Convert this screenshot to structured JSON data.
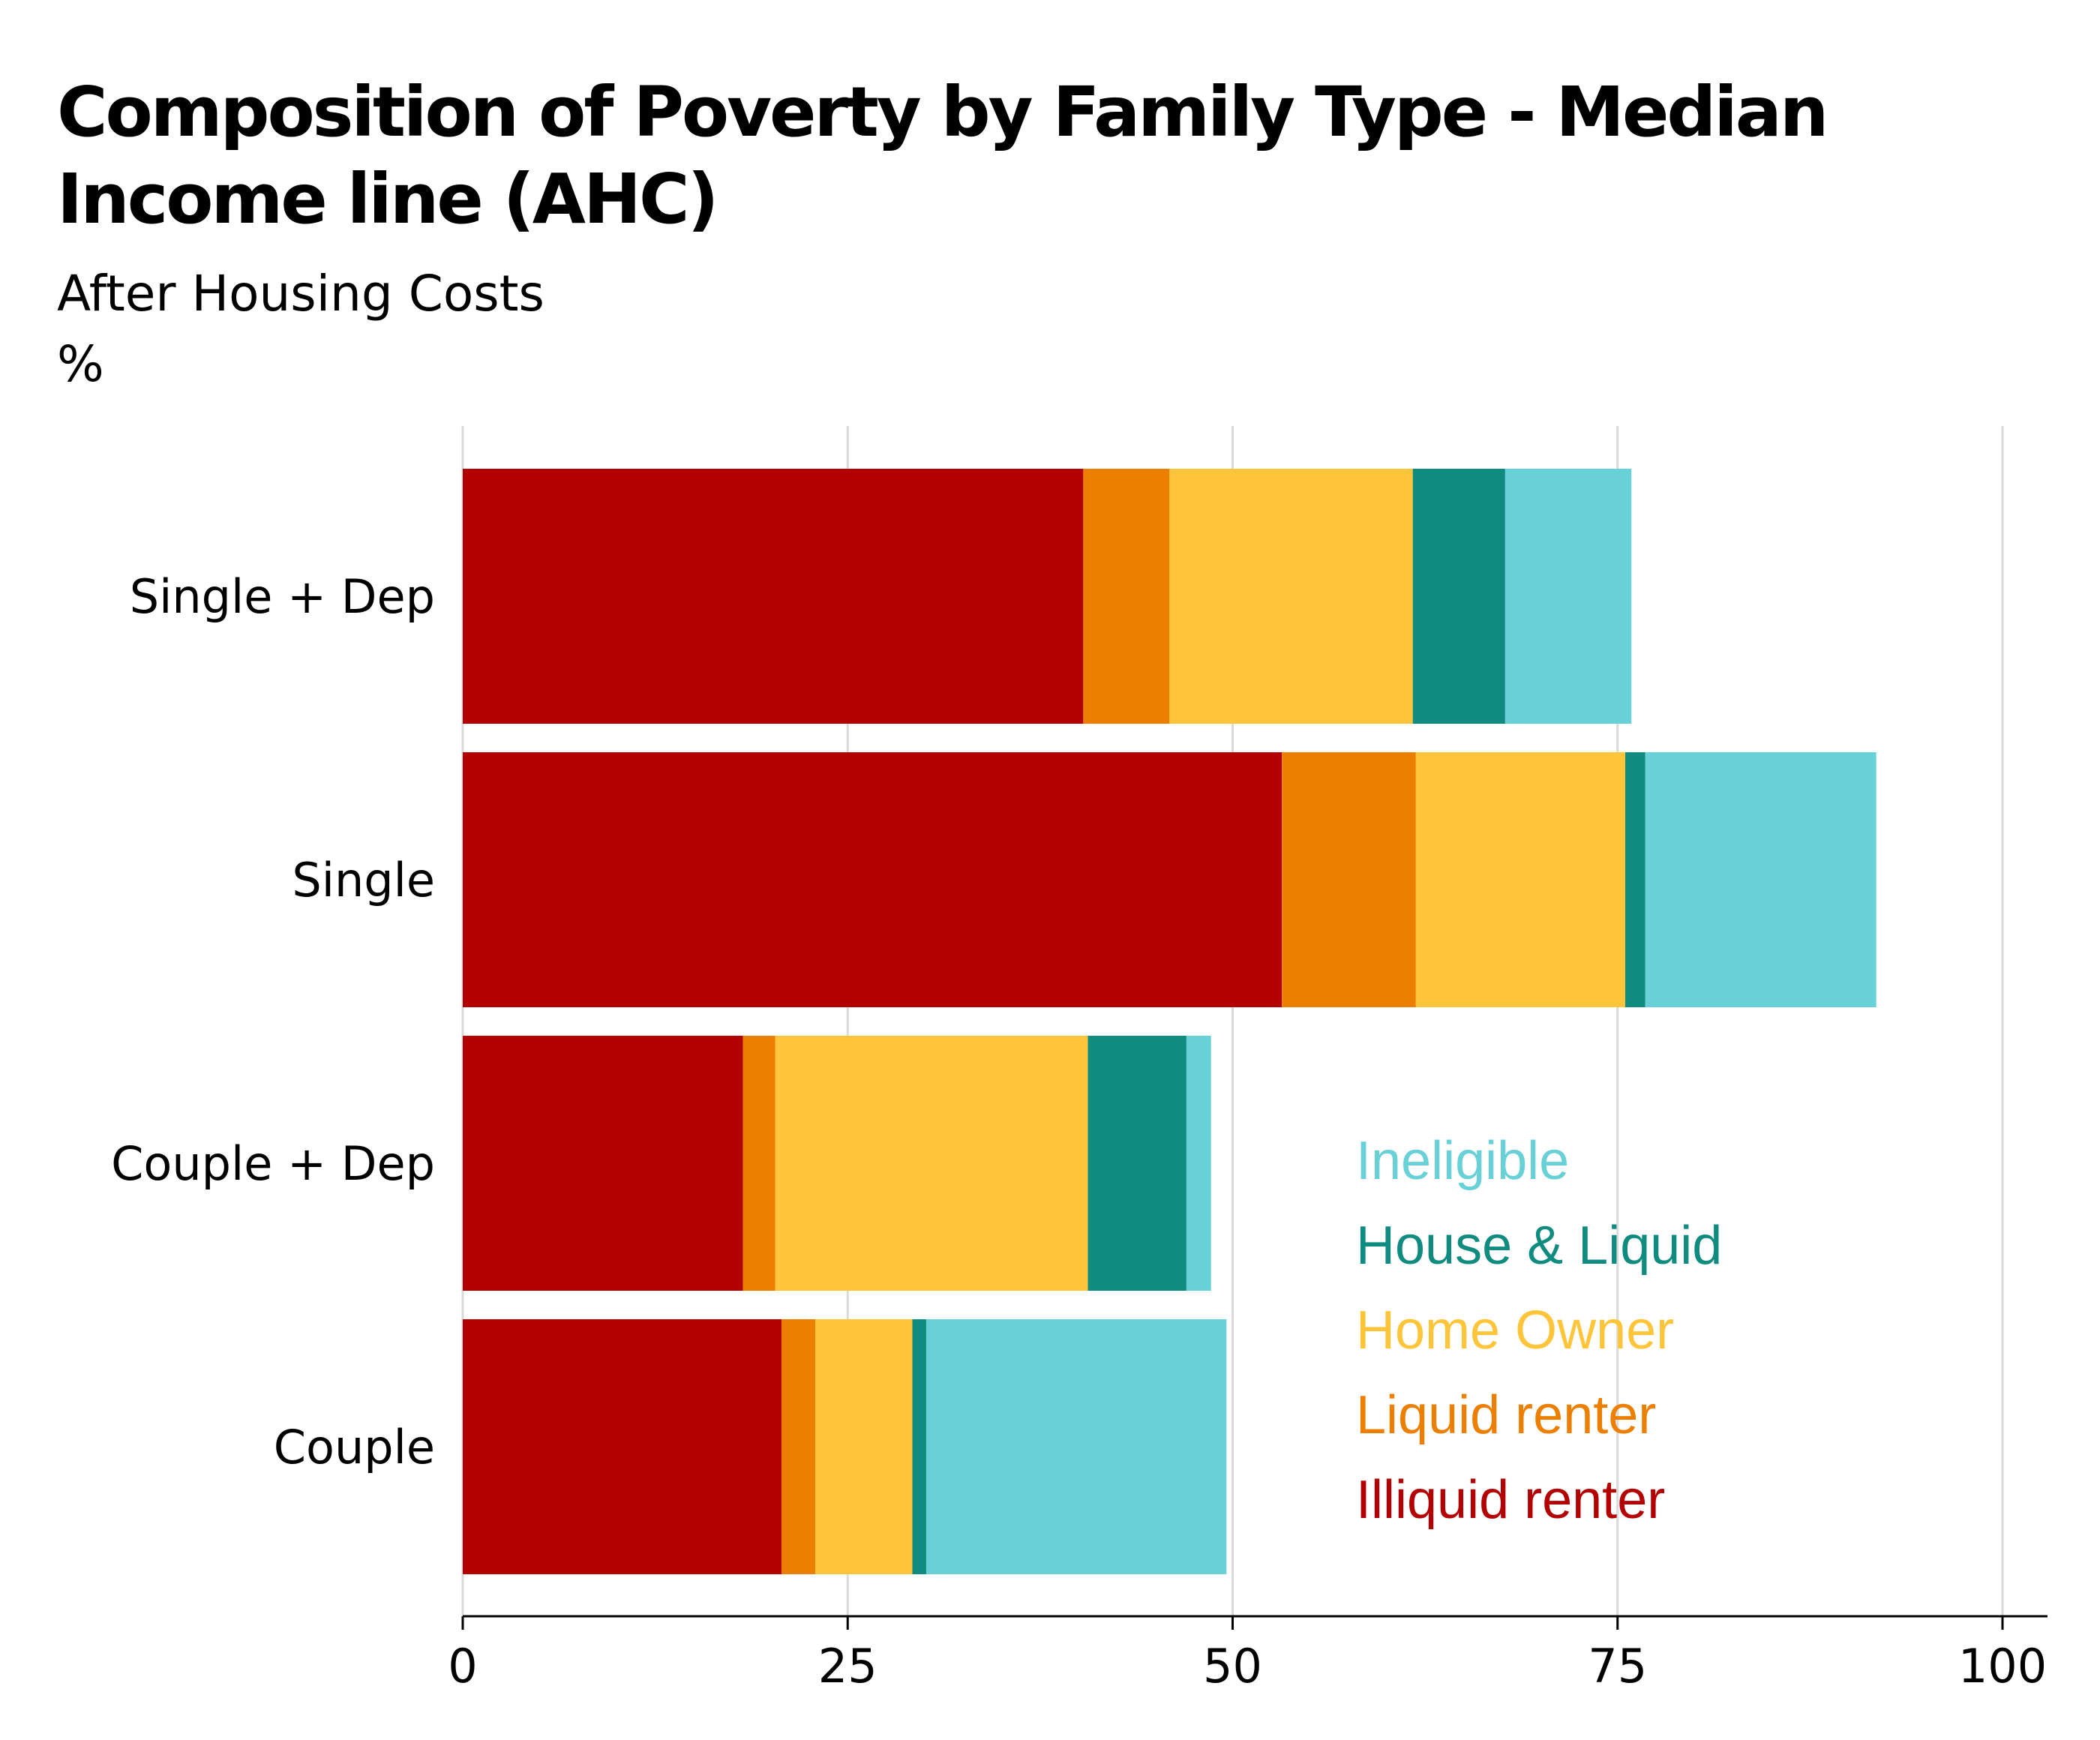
{
  "chart_data": {
    "type": "bar",
    "orientation": "horizontal",
    "stacked": true,
    "title": "Composition of Poverty by Family Type - Median Income line (AHC)",
    "subtitle": "After Housing Costs",
    "y_unit": "%",
    "categories": [
      "Single + Dep",
      "Single",
      "Couple + Dep",
      "Couple"
    ],
    "series": [
      {
        "name": "Illiquid renter",
        "color": "#b30000",
        "values": [
          40.3,
          53.2,
          18.2,
          20.7
        ]
      },
      {
        "name": "Liquid renter",
        "color": "#ec7f00",
        "values": [
          5.6,
          8.7,
          2.1,
          2.2
        ]
      },
      {
        "name": "Home Owner",
        "color": "#fec53a",
        "values": [
          15.8,
          13.6,
          20.3,
          6.3
        ]
      },
      {
        "name": "House & Liquid",
        "color": "#0f8b80",
        "values": [
          6.0,
          1.3,
          6.4,
          0.9
        ]
      },
      {
        "name": "Ineligible",
        "color": "#68d0d7",
        "values": [
          8.2,
          15.0,
          1.6,
          19.5
        ]
      }
    ],
    "xlim": [
      0,
      100
    ],
    "x_ticks": [
      "0",
      "25",
      "50",
      "75",
      "100"
    ],
    "legend": {
      "placement": "bottom-right",
      "order": [
        "Ineligible",
        "House & Liquid",
        "Home Owner",
        "Liquid renter",
        "Illiquid renter"
      ]
    },
    "grid": {
      "vertical": true,
      "color": "#d9d9d9"
    },
    "axis_color": "#000000"
  }
}
